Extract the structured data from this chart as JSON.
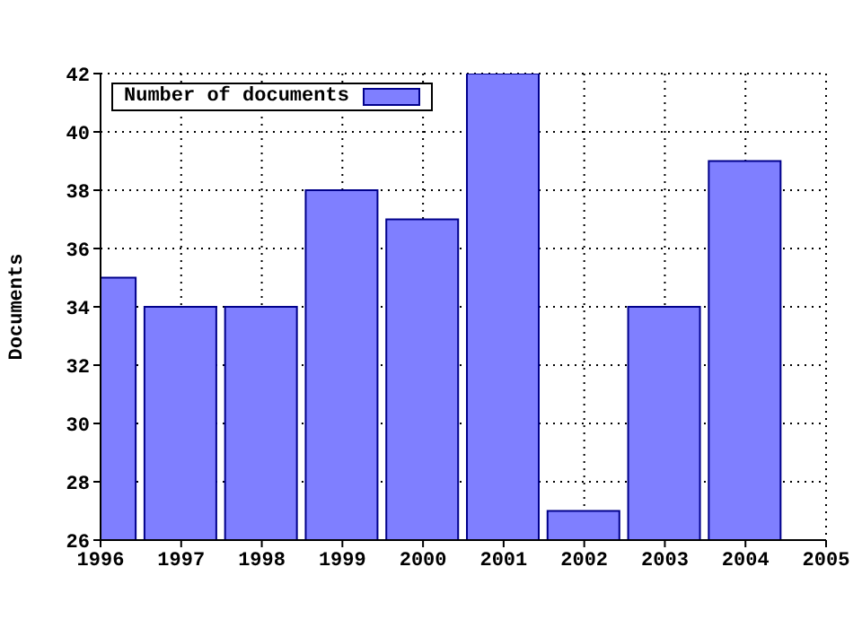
{
  "chart_data": {
    "type": "bar",
    "ylabel": "Documents",
    "x": [
      1996,
      1997,
      1998,
      1999,
      2000,
      2001,
      2002,
      2003,
      2004
    ],
    "series": [
      {
        "name": "Number of documents",
        "color": "#7f7fff",
        "values": [
          35,
          34,
          34,
          38,
          37,
          42,
          27,
          34,
          39
        ]
      }
    ],
    "xlim": [
      1996,
      2005
    ],
    "xticks": [
      1996,
      1997,
      1998,
      1999,
      2000,
      2001,
      2002,
      2003,
      2004,
      2005
    ],
    "ylim": [
      26,
      42
    ],
    "yticks": [
      26,
      28,
      30,
      32,
      34,
      36,
      38,
      40,
      42
    ],
    "grid": true,
    "legend": "top left"
  }
}
